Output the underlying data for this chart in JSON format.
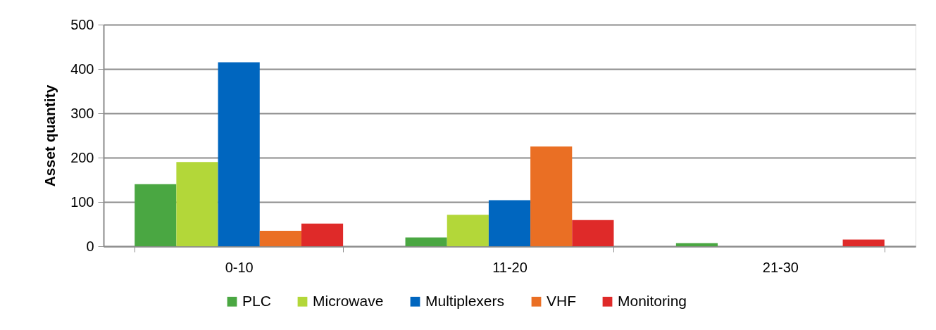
{
  "chart_data": {
    "type": "bar",
    "ylabel": "Asset quantity",
    "categories": [
      "0-10",
      "11-20",
      "21-30"
    ],
    "series": [
      {
        "name": "PLC",
        "color": "#4aa742",
        "values": [
          140,
          20,
          7
        ]
      },
      {
        "name": "Microwave",
        "color": "#b3d739",
        "values": [
          190,
          71,
          0
        ]
      },
      {
        "name": "Multiplexers",
        "color": "#0066bf",
        "values": [
          415,
          104,
          0
        ]
      },
      {
        "name": "VHF",
        "color": "#ea6f24",
        "values": [
          35,
          225,
          0
        ]
      },
      {
        "name": "Monitoring",
        "color": "#df2a29",
        "values": [
          51,
          59,
          15
        ]
      }
    ],
    "ylim": [
      0,
      500
    ],
    "yticks": [
      0,
      100,
      200,
      300,
      400,
      500
    ],
    "grid": "y",
    "legend": "bottom"
  }
}
